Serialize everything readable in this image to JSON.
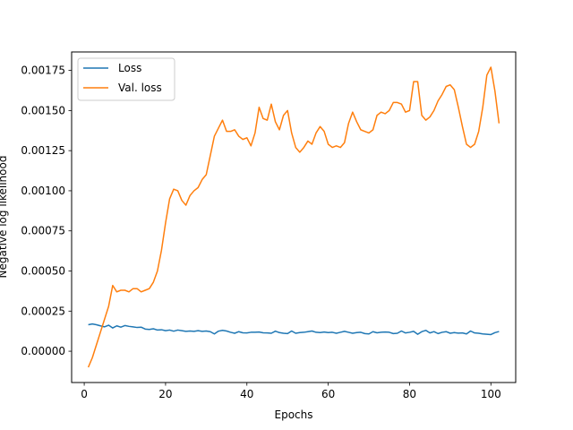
{
  "chart_data": {
    "type": "line",
    "title": "",
    "xlabel": "Epochs",
    "ylabel": "Negative log likelihood",
    "xlim": [
      -3.1,
      106.1
    ],
    "ylim": [
      -0.000195,
      0.001865
    ],
    "x_ticks": [
      0,
      20,
      40,
      60,
      80,
      100
    ],
    "y_ticks": [
      0,
      0.00025,
      0.0005,
      0.00075,
      0.001,
      0.00125,
      0.0015,
      0.00175
    ],
    "x_tick_labels": [
      "0",
      "20",
      "40",
      "60",
      "80",
      "100"
    ],
    "y_tick_labels": [
      "0.00000",
      "0.00025",
      "0.00050",
      "0.00075",
      "0.00100",
      "0.00125",
      "0.00150",
      "0.00175"
    ],
    "grid": false,
    "legend_position": "top-left",
    "x": [
      1,
      2,
      3,
      4,
      5,
      6,
      7,
      8,
      9,
      10,
      11,
      12,
      13,
      14,
      15,
      16,
      17,
      18,
      19,
      20,
      21,
      22,
      23,
      24,
      25,
      26,
      27,
      28,
      29,
      30,
      31,
      32,
      33,
      34,
      35,
      36,
      37,
      38,
      39,
      40,
      41,
      42,
      43,
      44,
      45,
      46,
      47,
      48,
      49,
      50,
      51,
      52,
      53,
      54,
      55,
      56,
      57,
      58,
      59,
      60,
      61,
      62,
      63,
      64,
      65,
      66,
      67,
      68,
      69,
      70,
      71,
      72,
      73,
      74,
      75,
      76,
      77,
      78,
      79,
      80,
      81,
      82,
      83,
      84,
      85,
      86,
      87,
      88,
      89,
      90,
      91,
      92,
      93,
      94,
      95,
      96,
      97,
      98,
      99,
      100,
      101,
      102
    ],
    "series": [
      {
        "name": "Loss",
        "color": "#1f77b4",
        "values": [
          0.000165,
          0.00017,
          0.000165,
          0.000158,
          0.000152,
          0.000162,
          0.000145,
          0.000158,
          0.00015,
          0.00016,
          0.000155,
          0.000152,
          0.000148,
          0.00015,
          0.000138,
          0.000136,
          0.00014,
          0.000132,
          0.000134,
          0.000128,
          0.000132,
          0.000125,
          0.000132,
          0.000128,
          0.000124,
          0.000126,
          0.000124,
          0.000128,
          0.000124,
          0.000126,
          0.000122,
          0.000108,
          0.000125,
          0.00013,
          0.000126,
          0.000118,
          0.000112,
          0.000122,
          0.000115,
          0.000114,
          0.000118,
          0.000118,
          0.00012,
          0.000115,
          0.000114,
          0.000112,
          0.000125,
          0.000116,
          0.000112,
          0.00011,
          0.000126,
          0.000112,
          0.000116,
          0.000118,
          0.000122,
          0.000126,
          0.000118,
          0.000116,
          0.00012,
          0.000116,
          0.000118,
          0.000112,
          0.000118,
          0.000124,
          0.000118,
          0.000112,
          0.000116,
          0.000118,
          0.00011,
          0.000108,
          0.000122,
          0.000115,
          0.000118,
          0.00012,
          0.000118,
          0.00011,
          0.000112,
          0.000126,
          0.000114,
          0.000118,
          0.000124,
          0.000106,
          0.000122,
          0.00013,
          0.000114,
          0.000122,
          0.00011,
          0.000118,
          0.000122,
          0.000112,
          0.000116,
          0.000113,
          0.000114,
          0.000108,
          0.000126,
          0.000114,
          0.000112,
          0.000108,
          0.000106,
          0.000104,
          0.000116,
          0.000123
        ]
      },
      {
        "name": "Val. loss",
        "color": "#ff7f0e",
        "values": [
          -0.0001,
          -4e-05,
          4e-05,
          0.00012,
          0.0002,
          0.00028,
          0.00041,
          0.00037,
          0.00038,
          0.00038,
          0.00037,
          0.00039,
          0.00039,
          0.00037,
          0.00038,
          0.00039,
          0.00043,
          0.0005,
          0.00063,
          0.0008,
          0.00095,
          0.00101,
          0.001,
          0.00094,
          0.00091,
          0.00097,
          0.001,
          0.00102,
          0.00107,
          0.0011,
          0.00122,
          0.00134,
          0.00139,
          0.00144,
          0.00137,
          0.00137,
          0.00138,
          0.00134,
          0.00132,
          0.00133,
          0.00128,
          0.00136,
          0.00152,
          0.00145,
          0.00144,
          0.00154,
          0.00143,
          0.00138,
          0.00147,
          0.0015,
          0.00136,
          0.00127,
          0.00124,
          0.00127,
          0.00131,
          0.00129,
          0.00136,
          0.0014,
          0.00137,
          0.00129,
          0.00127,
          0.00128,
          0.00127,
          0.0013,
          0.00142,
          0.00149,
          0.00143,
          0.00138,
          0.00137,
          0.00136,
          0.00138,
          0.00147,
          0.00149,
          0.00148,
          0.0015,
          0.00155,
          0.00155,
          0.00154,
          0.00149,
          0.0015,
          0.00168,
          0.00168,
          0.00147,
          0.00144,
          0.00146,
          0.0015,
          0.00156,
          0.0016,
          0.00165,
          0.00166,
          0.00163,
          0.00152,
          0.0014,
          0.00129,
          0.00127,
          0.00129,
          0.00137,
          0.00152,
          0.00172,
          0.00177,
          0.00162,
          0.00142
        ]
      }
    ]
  }
}
